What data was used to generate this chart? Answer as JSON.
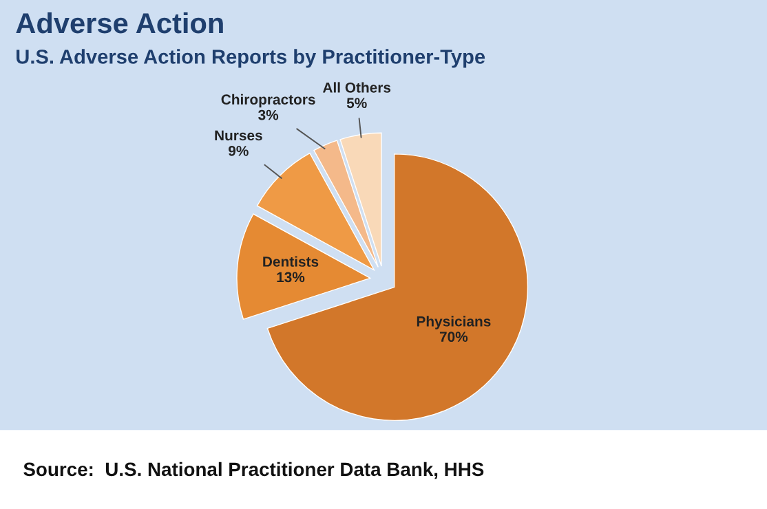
{
  "chart_data": {
    "type": "pie",
    "title": "Adverse Action",
    "subtitle": "U.S. Adverse Action Reports by Practitioner-Type",
    "categories": [
      "Physicians",
      "Dentists",
      "Nurses",
      "Chiropractors",
      "All Others"
    ],
    "values": [
      70,
      13,
      9,
      3,
      5
    ],
    "colors": [
      "#d2772a",
      "#e58a33",
      "#ef9a45",
      "#f4b98a",
      "#f9d9b8"
    ],
    "value_labels": [
      "70%",
      "13%",
      "9%",
      "3%",
      "5%"
    ],
    "annotations": [
      "Source:  U.S. National Practitioner Data Bank, HHS"
    ]
  }
}
